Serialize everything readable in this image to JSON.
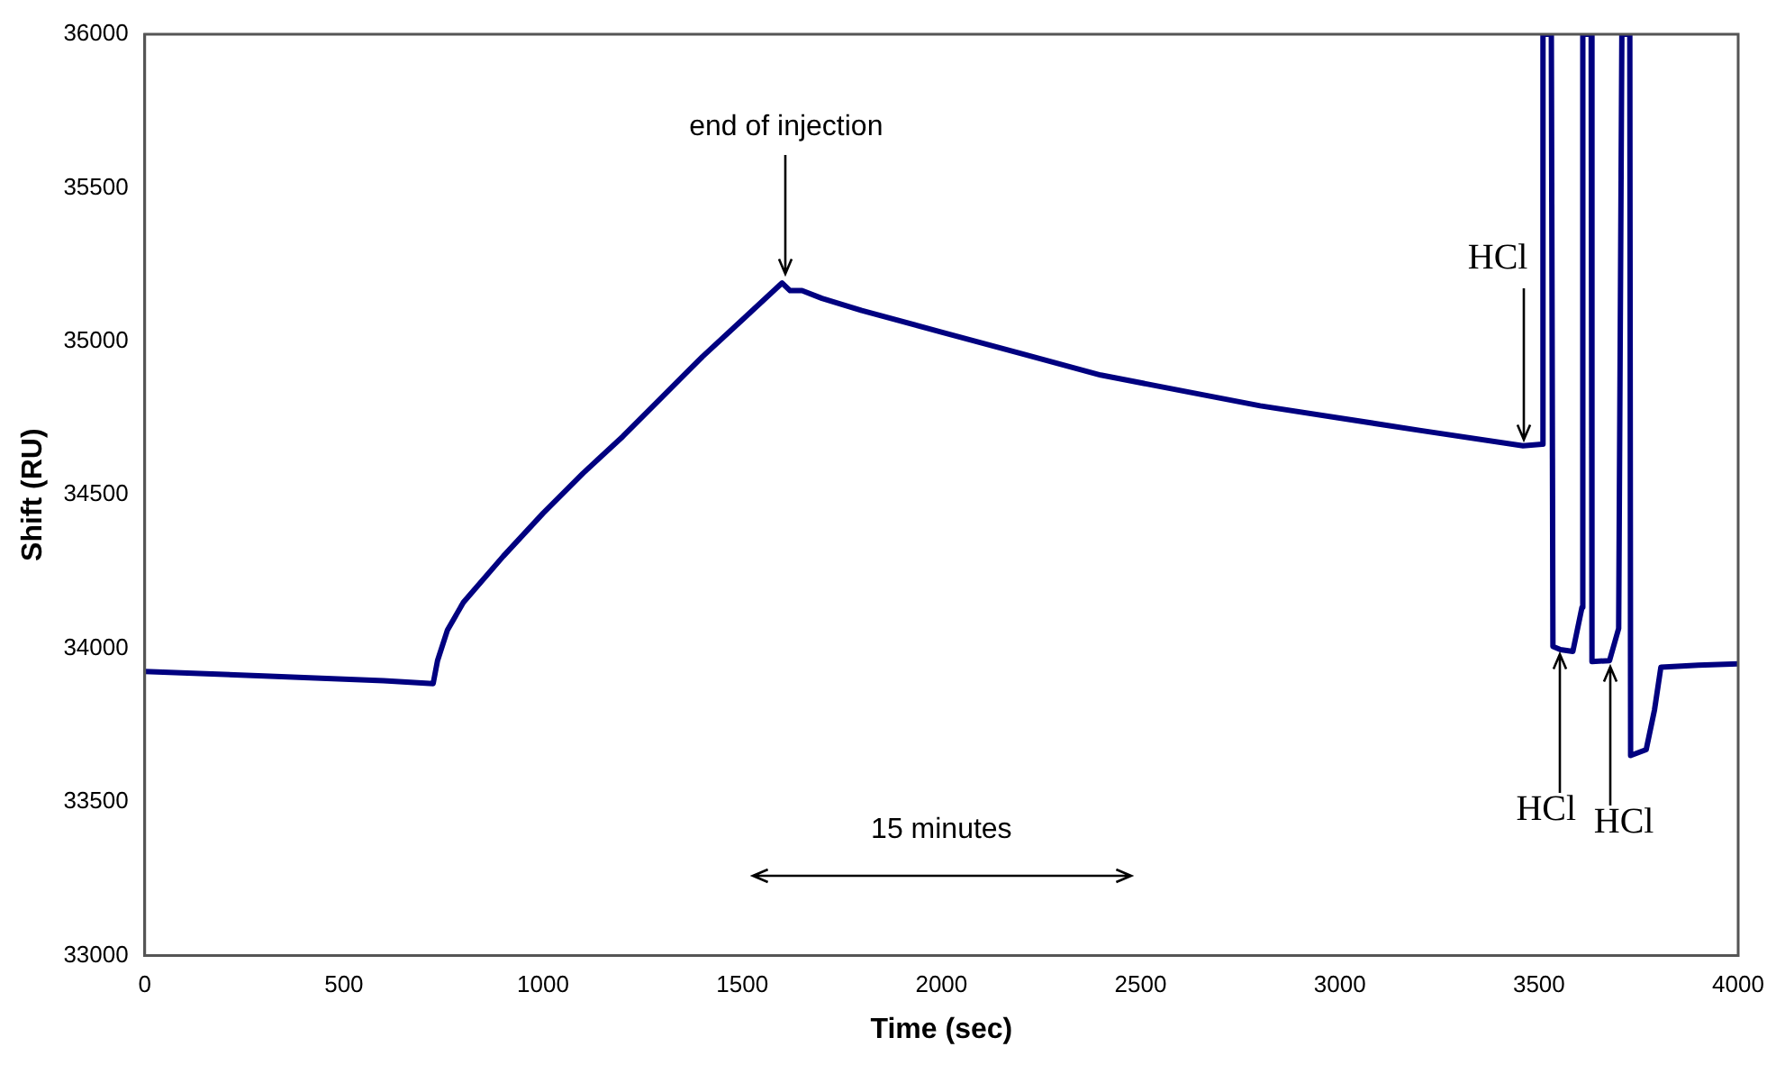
{
  "chart_data": {
    "type": "line",
    "xlabel": "Time (sec)",
    "ylabel": "Shift (RU)",
    "x": [
      0,
      300,
      600,
      724,
      735,
      760,
      800,
      900,
      1000,
      1100,
      1200,
      1300,
      1400,
      1500,
      1600,
      1620,
      1650,
      1700,
      1800,
      2000,
      2200,
      2400,
      2600,
      2800,
      3000,
      3200,
      3460,
      3508,
      3510,
      3531,
      3535,
      3554,
      3585,
      3608,
      3610,
      3631,
      3633,
      3677,
      3700,
      3708,
      3710,
      3728,
      3730,
      3769,
      3790,
      3806,
      3900,
      4000
    ],
    "series": [
      {
        "color": "#000080",
        "values": [
          33925,
          33910,
          33895,
          33885,
          33960,
          34060,
          34150,
          34300,
          34440,
          34570,
          34690,
          34820,
          34950,
          35070,
          35190,
          35165,
          35165,
          35140,
          35100,
          35030,
          34960,
          34890,
          34840,
          34790,
          34750,
          34710,
          34660,
          34665,
          36000,
          36000,
          34006,
          33996,
          33990,
          34134,
          36000,
          36000,
          33957,
          33960,
          34065,
          36000,
          36000,
          36000,
          33651,
          33670,
          33800,
          33939,
          33945,
          33950
        ]
      }
    ],
    "xlim": [
      0,
      4000
    ],
    "ylim": [
      33000,
      36000
    ],
    "xticks": [
      0,
      500,
      1000,
      1500,
      2000,
      2500,
      3000,
      3500,
      4000
    ],
    "yticks": [
      33000,
      33500,
      34000,
      34500,
      35000,
      35500,
      36000
    ],
    "grid": false,
    "legend": false,
    "marker": "none",
    "line_style": "solid",
    "annotations": [
      {
        "text": "end of injection",
        "x": 1610,
        "y": 35220
      },
      {
        "text": "HCl",
        "x": 3460,
        "y": 34660
      },
      {
        "text": "HCl",
        "x": 3554,
        "y": 33996
      },
      {
        "text": "HCl",
        "x": 3677,
        "y": 33960
      },
      "15 minutes"
    ]
  }
}
